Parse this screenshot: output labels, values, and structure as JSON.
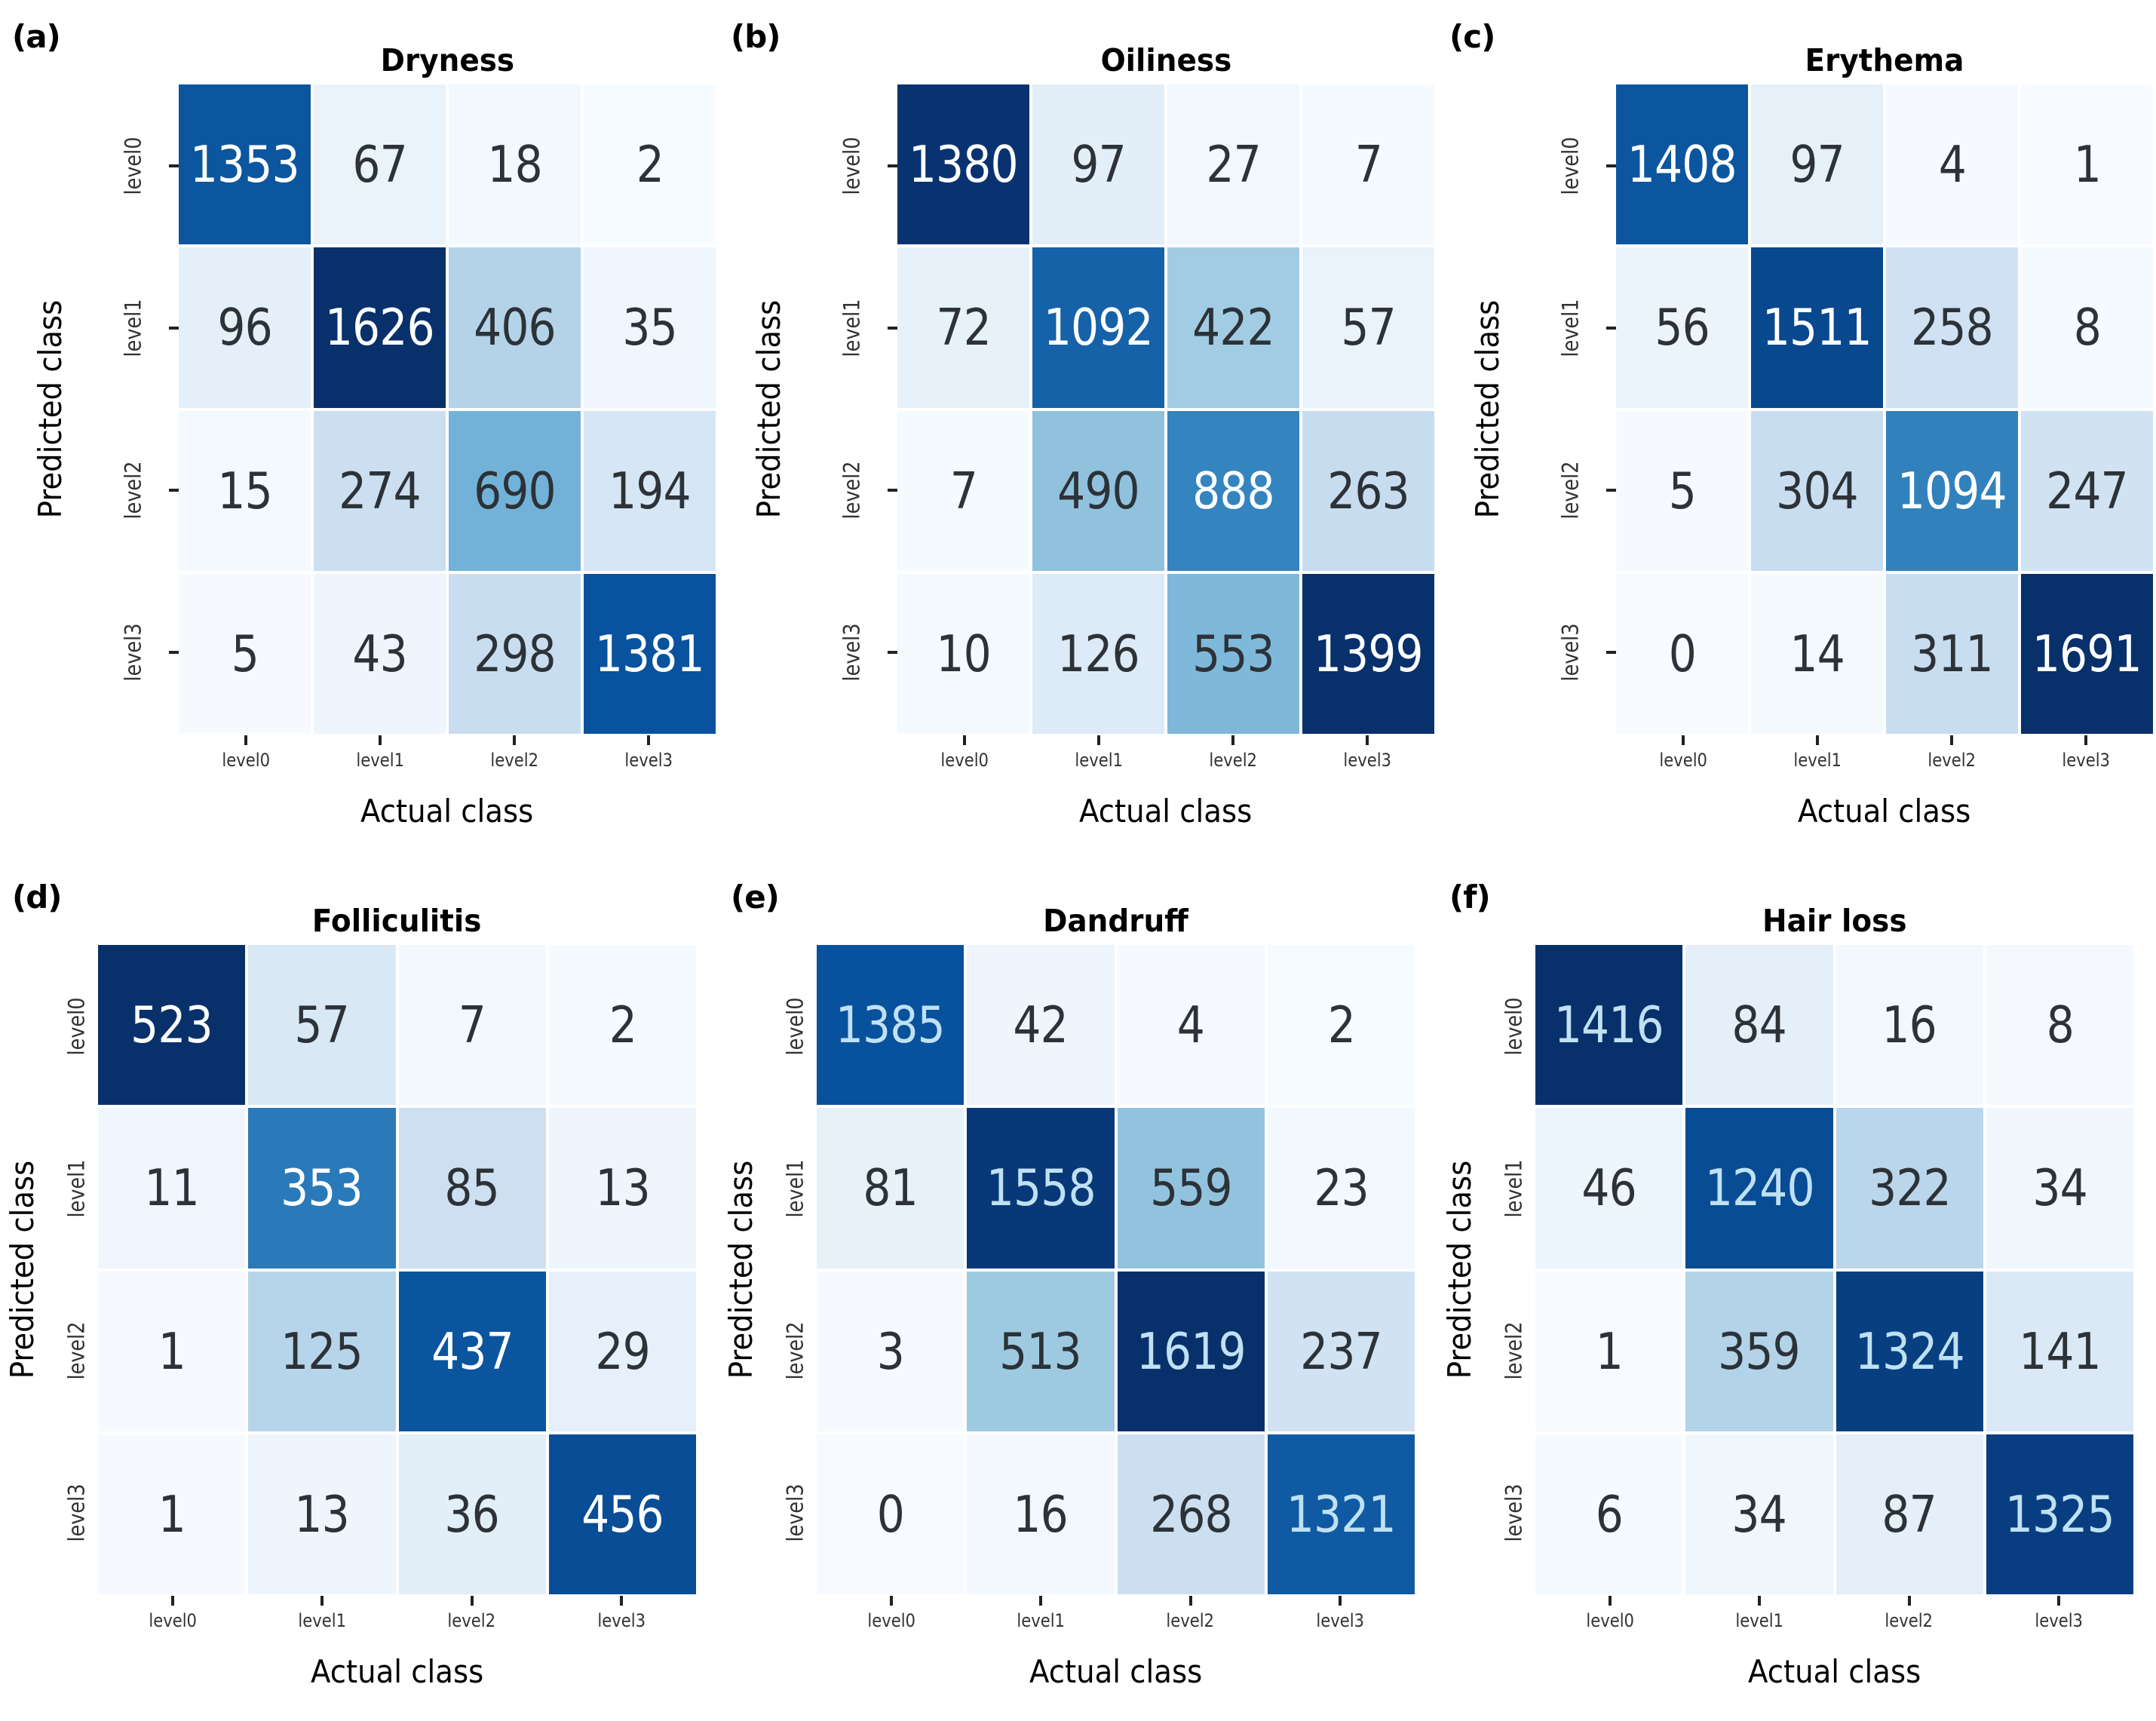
{
  "colors": {
    "background": "#ffffff",
    "annot_dark": "#2c3237",
    "tick_mark": "#222222",
    "tick_label": "#333333",
    "axis_label": "#000000",
    "colormap_name": "Blues",
    "colormap_stops": [
      [
        0.0,
        "#f7fbff"
      ],
      [
        0.125,
        "#deebf7"
      ],
      [
        0.25,
        "#c6dbef"
      ],
      [
        0.375,
        "#9ecae1"
      ],
      [
        0.5,
        "#6baed6"
      ],
      [
        0.625,
        "#4292c6"
      ],
      [
        0.75,
        "#2171b5"
      ],
      [
        0.875,
        "#08519c"
      ],
      [
        1.0,
        "#08306b"
      ]
    ],
    "gamma": 0.85,
    "light_text_threshold": 0.55
  },
  "chart_data": [
    {
      "type": "heatmap",
      "panel_label": "(a)",
      "title": "Dryness",
      "xlabel": "Actual class",
      "ylabel": "Predicted class",
      "x_categories": [
        "level0",
        "level1",
        "level2",
        "level3"
      ],
      "y_categories": [
        "level0",
        "level1",
        "level2",
        "level3"
      ],
      "matrix": [
        [
          1353,
          67,
          18,
          2
        ],
        [
          96,
          1626,
          406,
          35
        ],
        [
          15,
          274,
          690,
          194
        ],
        [
          5,
          43,
          298,
          1381
        ]
      ],
      "vmin": 0,
      "vmax": 1626,
      "annot_light_color": "#ffffff"
    },
    {
      "type": "heatmap",
      "panel_label": "(b)",
      "title": "Oiliness",
      "xlabel": "Actual class",
      "ylabel": "Predicted class",
      "x_categories": [
        "level0",
        "level1",
        "level2",
        "level3"
      ],
      "y_categories": [
        "level0",
        "level1",
        "level2",
        "level3"
      ],
      "matrix": [
        [
          1380,
          97,
          27,
          7
        ],
        [
          72,
          1092,
          422,
          57
        ],
        [
          7,
          490,
          888,
          263
        ],
        [
          10,
          126,
          553,
          1399
        ]
      ],
      "vmin": 0,
      "vmax": 1399,
      "annot_light_color": "#ffffff"
    },
    {
      "type": "heatmap",
      "panel_label": "(c)",
      "title": "Erythema",
      "xlabel": "Actual class",
      "ylabel": "Predicted class",
      "x_categories": [
        "level0",
        "level1",
        "level2",
        "level3"
      ],
      "y_categories": [
        "level0",
        "level1",
        "level2",
        "level3"
      ],
      "matrix": [
        [
          1408,
          97,
          4,
          1
        ],
        [
          56,
          1511,
          258,
          8
        ],
        [
          5,
          304,
          1094,
          247
        ],
        [
          0,
          14,
          311,
          1691
        ]
      ],
      "vmin": 0,
      "vmax": 1691,
      "annot_light_color": "#ffffff"
    },
    {
      "type": "heatmap",
      "panel_label": "(d)",
      "title": "Folliculitis",
      "xlabel": "Actual class",
      "ylabel": "Predicted class",
      "x_categories": [
        "level0",
        "level1",
        "level2",
        "level3"
      ],
      "y_categories": [
        "level0",
        "level1",
        "level2",
        "level3"
      ],
      "matrix": [
        [
          523,
          57,
          7,
          2
        ],
        [
          11,
          353,
          85,
          13
        ],
        [
          1,
          125,
          437,
          29
        ],
        [
          1,
          13,
          36,
          456
        ]
      ],
      "vmin": 0,
      "vmax": 523,
      "annot_light_color": "#ffffff"
    },
    {
      "type": "heatmap",
      "panel_label": "(e)",
      "title": "Dandruff",
      "xlabel": "Actual class",
      "ylabel": "Predicted class",
      "x_categories": [
        "level0",
        "level1",
        "level2",
        "level3"
      ],
      "y_categories": [
        "level0",
        "level1",
        "level2",
        "level3"
      ],
      "matrix": [
        [
          1385,
          42,
          4,
          2
        ],
        [
          81,
          1558,
          559,
          23
        ],
        [
          3,
          513,
          1619,
          237
        ],
        [
          0,
          16,
          268,
          1321
        ]
      ],
      "vmin": 0,
      "vmax": 1619,
      "annot_light_color": "#bfe1f3"
    },
    {
      "type": "heatmap",
      "panel_label": "(f)",
      "title": "Hair loss",
      "xlabel": "Actual class",
      "ylabel": "Predicted class",
      "x_categories": [
        "level0",
        "level1",
        "level2",
        "level3"
      ],
      "y_categories": [
        "level0",
        "level1",
        "level2",
        "level3"
      ],
      "matrix": [
        [
          1416,
          84,
          16,
          8
        ],
        [
          46,
          1240,
          322,
          34
        ],
        [
          1,
          359,
          1324,
          141
        ],
        [
          6,
          34,
          87,
          1325
        ]
      ],
      "vmin": 0,
      "vmax": 1416,
      "annot_light_color": "#bfe1f3"
    }
  ]
}
